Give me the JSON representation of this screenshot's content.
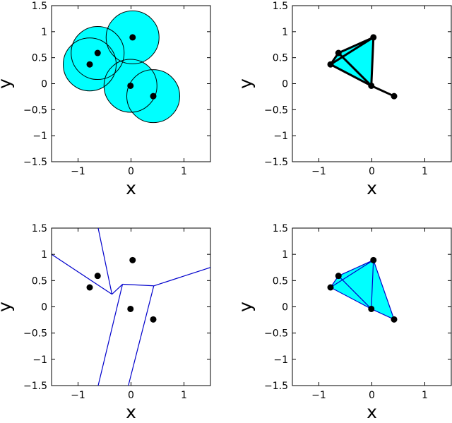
{
  "chart_data": [
    {
      "type": "scatter",
      "title": "",
      "xlabel": "x",
      "ylabel": "y",
      "xlim": [
        -1.5,
        1.5
      ],
      "ylim": [
        -1.5,
        1.5
      ],
      "xticks": [
        -1,
        0,
        1
      ],
      "yticks": [
        -1.5,
        -1,
        -0.5,
        0,
        0.5,
        1,
        1.5
      ],
      "grid": false,
      "points": {
        "x": [
          -0.78,
          -0.63,
          0.03,
          -0.01,
          0.42
        ],
        "y": [
          0.37,
          0.59,
          0.89,
          -0.04,
          -0.24
        ]
      },
      "disc_radius": 0.5,
      "fill_color": "#00ffff",
      "overlay": "discs"
    },
    {
      "type": "scatter",
      "title": "",
      "xlabel": "x",
      "ylabel": "y",
      "xlim": [
        -1.5,
        1.5
      ],
      "ylim": [
        -1.5,
        1.5
      ],
      "xticks": [
        -1,
        0,
        1
      ],
      "yticks": [
        -1.5,
        -1,
        -0.5,
        0,
        0.5,
        1,
        1.5
      ],
      "grid": false,
      "points": {
        "x": [
          -0.78,
          -0.63,
          0.03,
          -0.01,
          0.42
        ],
        "y": [
          0.37,
          0.59,
          0.89,
          -0.04,
          -0.24
        ]
      },
      "filled_triangles": [
        [
          0,
          1,
          3
        ],
        [
          1,
          2,
          3
        ]
      ],
      "edges": [
        [
          0,
          1
        ],
        [
          0,
          2
        ],
        [
          0,
          3
        ],
        [
          1,
          2
        ],
        [
          1,
          3
        ],
        [
          2,
          3
        ],
        [
          3,
          4
        ]
      ],
      "fill_color": "#00ffff",
      "edge_color": "#000000",
      "overlay": "complex"
    },
    {
      "type": "scatter",
      "title": "",
      "xlabel": "x",
      "ylabel": "y",
      "xlim": [
        -1.5,
        1.5
      ],
      "ylim": [
        -1.5,
        1.5
      ],
      "xticks": [
        -1,
        0,
        1
      ],
      "yticks": [
        -1.5,
        -1,
        -0.5,
        0,
        0.5,
        1,
        1.5
      ],
      "grid": false,
      "points": {
        "x": [
          -0.78,
          -0.63,
          0.03,
          -0.01,
          0.42
        ],
        "y": [
          0.37,
          0.59,
          0.89,
          -0.04,
          -0.24
        ]
      },
      "voronoi_segments": [
        [
          [
            -0.62,
            1.5
          ],
          [
            -0.36,
            0.24
          ]
        ],
        [
          [
            -1.5,
            1.0
          ],
          [
            -0.36,
            0.24
          ]
        ],
        [
          [
            -0.36,
            0.24
          ],
          [
            -0.16,
            0.43
          ]
        ],
        [
          [
            -0.16,
            0.43
          ],
          [
            0.43,
            0.4
          ]
        ],
        [
          [
            0.43,
            0.4
          ],
          [
            1.5,
            0.75
          ]
        ],
        [
          [
            -0.16,
            0.43
          ],
          [
            -0.62,
            -1.5
          ]
        ],
        [
          [
            0.43,
            0.4
          ],
          [
            -0.05,
            -1.5
          ]
        ]
      ],
      "line_color": "#0000cc",
      "overlay": "voronoi"
    },
    {
      "type": "scatter",
      "title": "",
      "xlabel": "x",
      "ylabel": "y",
      "xlim": [
        -1.5,
        1.5
      ],
      "ylim": [
        -1.5,
        1.5
      ],
      "xticks": [
        -1,
        0,
        1
      ],
      "yticks": [
        -1.5,
        -1,
        -0.5,
        0,
        0.5,
        1,
        1.5
      ],
      "grid": false,
      "points": {
        "x": [
          -0.78,
          -0.63,
          0.03,
          -0.01,
          0.42
        ],
        "y": [
          0.37,
          0.59,
          0.89,
          -0.04,
          -0.24
        ]
      },
      "filled_triangles": [
        [
          0,
          1,
          3
        ],
        [
          1,
          2,
          3
        ],
        [
          2,
          3,
          4
        ]
      ],
      "edges": [
        [
          0,
          1
        ],
        [
          0,
          2
        ],
        [
          0,
          3
        ],
        [
          1,
          2
        ],
        [
          1,
          3
        ],
        [
          2,
          3
        ],
        [
          2,
          4
        ],
        [
          3,
          4
        ]
      ],
      "fill_color": "#00ffff",
      "edge_color": "#0000cc",
      "overlay": "complex"
    }
  ]
}
